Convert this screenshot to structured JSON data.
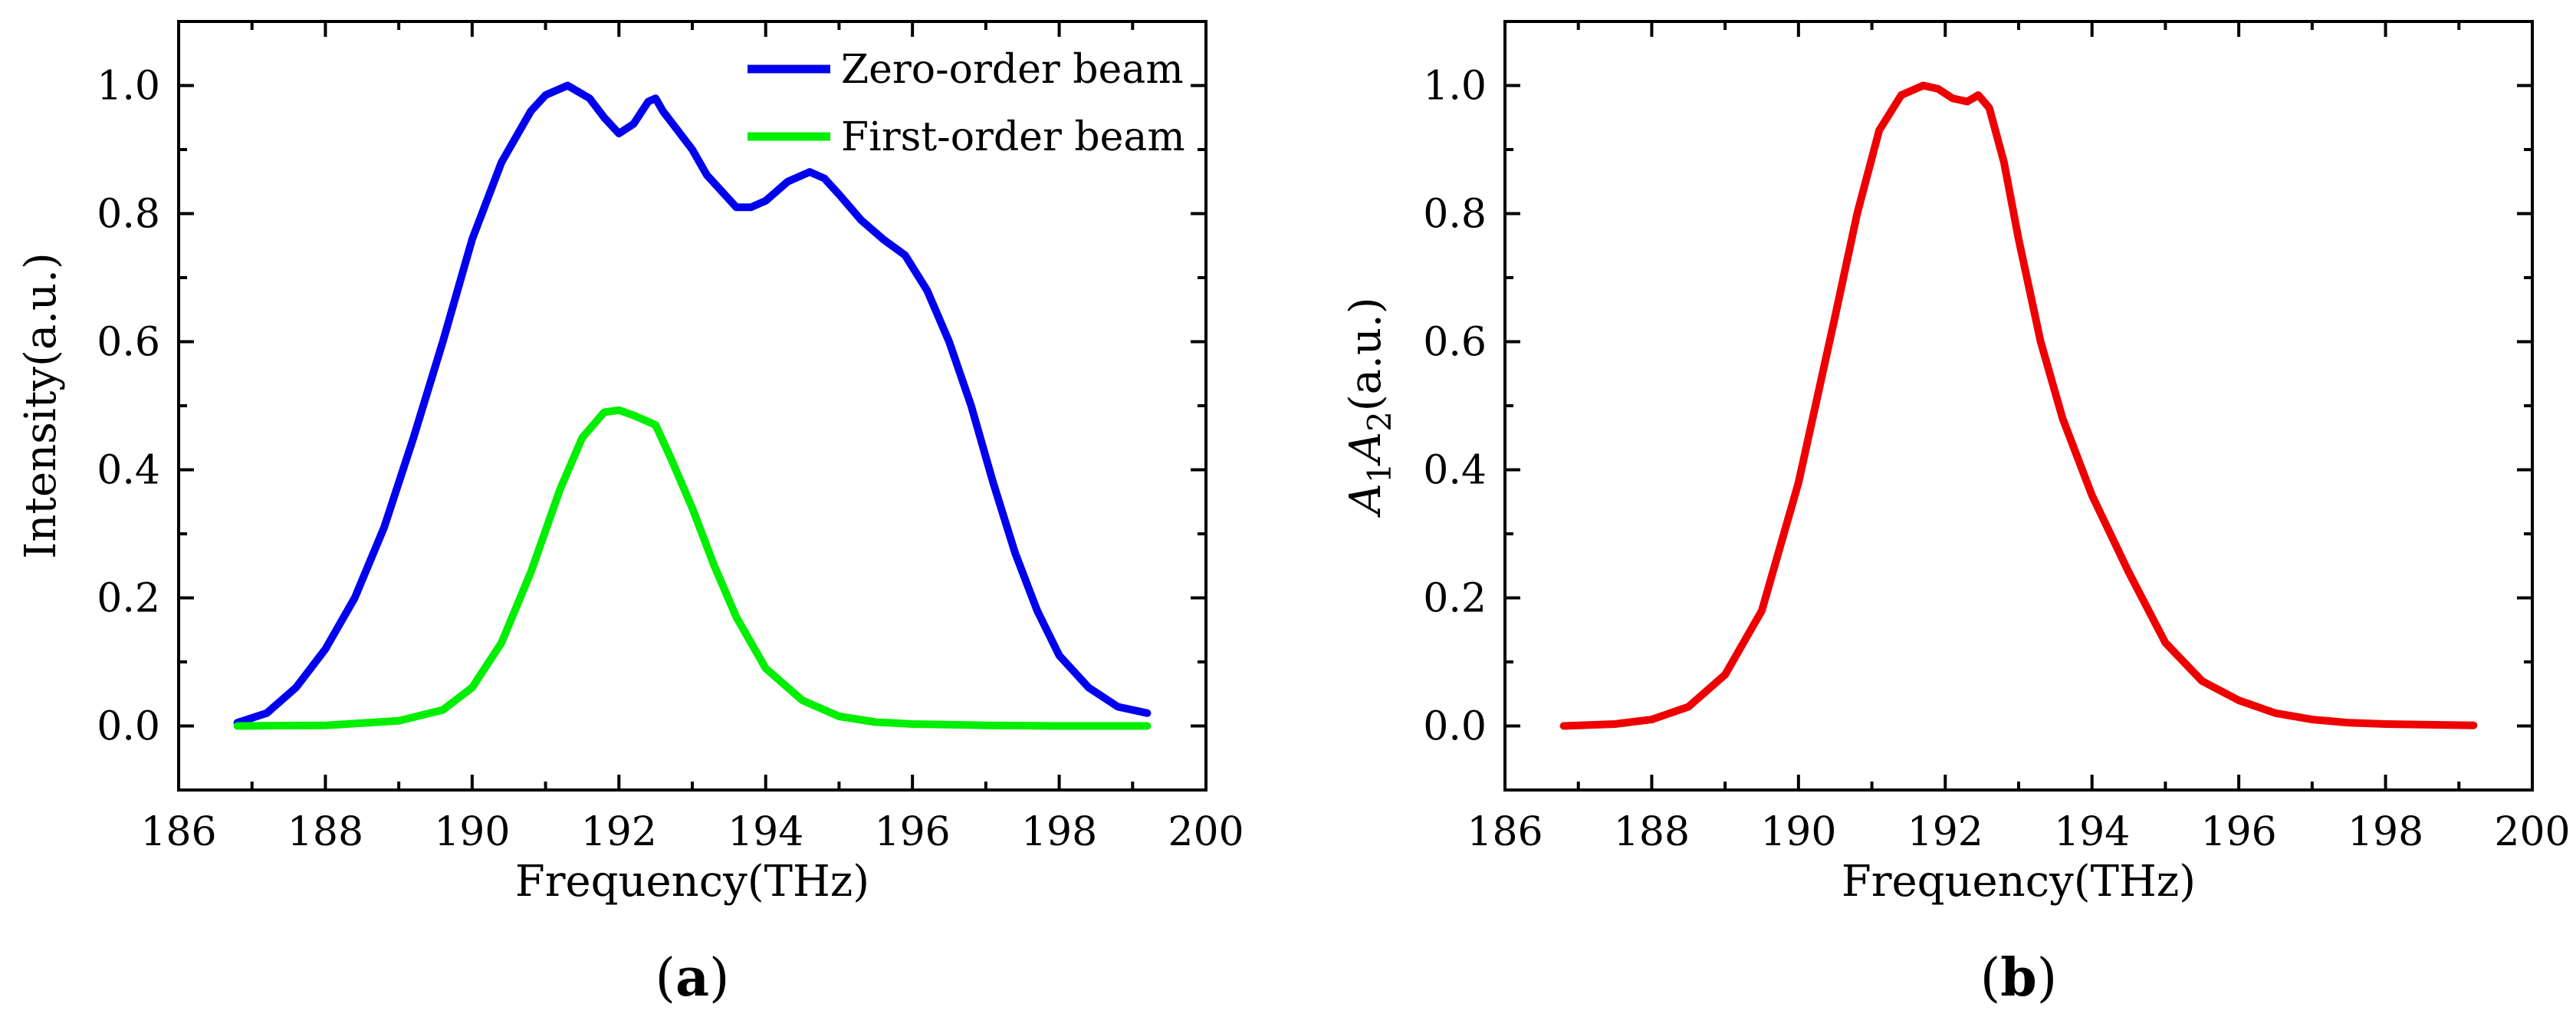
{
  "chart_data": [
    {
      "type": "line",
      "panel_label": "a",
      "title": "",
      "xlabel": "Frequency(THz)",
      "ylabel": "Intensity(a.u.)",
      "xlim": [
        186,
        200
      ],
      "ylim": [
        -0.1,
        1.1
      ],
      "xticks": [
        186,
        188,
        190,
        192,
        194,
        196,
        198,
        200
      ],
      "yticks": [
        0.0,
        0.2,
        0.4,
        0.6,
        0.8,
        1.0
      ],
      "xtick_labels": [
        "186",
        "188",
        "190",
        "192",
        "194",
        "196",
        "198",
        "200"
      ],
      "ytick_labels": [
        "0.0",
        "0.2",
        "0.4",
        "0.6",
        "0.8",
        "1.0"
      ],
      "grid": false,
      "legend_position": "top-right",
      "series": [
        {
          "name": "Zero-order beam",
          "color": "#0000ee",
          "x": [
            186.8,
            187.2,
            187.6,
            188.0,
            188.4,
            188.8,
            189.2,
            189.6,
            190.0,
            190.4,
            190.8,
            191.0,
            191.3,
            191.6,
            191.8,
            192.0,
            192.2,
            192.4,
            192.5,
            192.6,
            192.8,
            193.0,
            193.2,
            193.6,
            193.8,
            194.0,
            194.3,
            194.6,
            194.8,
            195.0,
            195.3,
            195.6,
            195.9,
            196.2,
            196.5,
            196.8,
            197.1,
            197.4,
            197.7,
            198.0,
            198.4,
            198.8,
            199.2
          ],
          "y": [
            0.005,
            0.02,
            0.06,
            0.12,
            0.2,
            0.31,
            0.45,
            0.6,
            0.76,
            0.88,
            0.96,
            0.985,
            1.0,
            0.98,
            0.95,
            0.925,
            0.94,
            0.975,
            0.98,
            0.96,
            0.93,
            0.9,
            0.86,
            0.81,
            0.81,
            0.82,
            0.85,
            0.865,
            0.855,
            0.83,
            0.79,
            0.76,
            0.735,
            0.68,
            0.6,
            0.5,
            0.38,
            0.27,
            0.18,
            0.11,
            0.06,
            0.03,
            0.02
          ]
        },
        {
          "name": "First-order beam",
          "color": "#00ee00",
          "x": [
            186.8,
            188.0,
            189.0,
            189.6,
            190.0,
            190.4,
            190.8,
            191.2,
            191.5,
            191.8,
            192.0,
            192.2,
            192.5,
            192.7,
            193.0,
            193.3,
            193.6,
            194.0,
            194.5,
            195.0,
            195.5,
            196.0,
            197.0,
            198.0,
            199.2
          ],
          "y": [
            0.0,
            0.001,
            0.008,
            0.025,
            0.06,
            0.13,
            0.24,
            0.37,
            0.45,
            0.49,
            0.493,
            0.485,
            0.47,
            0.42,
            0.34,
            0.25,
            0.17,
            0.09,
            0.04,
            0.015,
            0.006,
            0.003,
            0.001,
            0.0,
            0.0
          ]
        }
      ]
    },
    {
      "type": "line",
      "panel_label": "b",
      "title": "",
      "xlabel": "Frequency(THz)",
      "ylabel_parts": [
        "A",
        "1",
        "A",
        "2",
        "(a.u.)"
      ],
      "xlim": [
        186,
        200
      ],
      "ylim": [
        -0.1,
        1.1
      ],
      "xticks": [
        186,
        188,
        190,
        192,
        194,
        196,
        198,
        200
      ],
      "yticks": [
        0.0,
        0.2,
        0.4,
        0.6,
        0.8,
        1.0
      ],
      "xtick_labels": [
        "186",
        "188",
        "190",
        "192",
        "194",
        "196",
        "198",
        "200"
      ],
      "ytick_labels": [
        "0.0",
        "0.2",
        "0.4",
        "0.6",
        "0.8",
        "1.0"
      ],
      "grid": false,
      "series": [
        {
          "name": "A1A2",
          "color": "#ee0000",
          "x": [
            186.8,
            187.5,
            188.0,
            188.5,
            189.0,
            189.5,
            190.0,
            190.5,
            190.8,
            191.1,
            191.4,
            191.7,
            191.9,
            192.1,
            192.3,
            192.45,
            192.6,
            192.8,
            193.0,
            193.3,
            193.6,
            194.0,
            194.5,
            195.0,
            195.5,
            196.0,
            196.5,
            197.0,
            197.5,
            198.0,
            198.5,
            199.2
          ],
          "y": [
            0.0,
            0.003,
            0.01,
            0.03,
            0.08,
            0.18,
            0.38,
            0.64,
            0.8,
            0.93,
            0.985,
            1.0,
            0.995,
            0.98,
            0.975,
            0.985,
            0.965,
            0.88,
            0.76,
            0.6,
            0.48,
            0.36,
            0.24,
            0.13,
            0.07,
            0.04,
            0.02,
            0.01,
            0.005,
            0.003,
            0.002,
            0.001
          ]
        }
      ]
    }
  ]
}
